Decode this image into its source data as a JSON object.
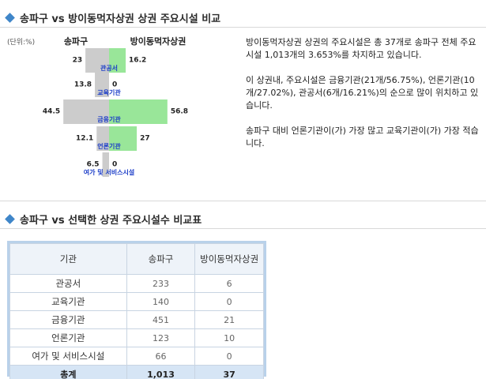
{
  "section1": {
    "title": "송파구 vs 방이동먹자상권 상권 주요시설 비교"
  },
  "section2": {
    "title": "송파구 vs 선택한 상권 주요시설수 비교표"
  },
  "chart_data": {
    "type": "bar",
    "orientation": "horizontal-butterfly",
    "unit_label": "(단위:%)",
    "categories": [
      "관공서",
      "교육기관",
      "금융기관",
      "언론기관",
      "여가 및 서비스시설"
    ],
    "series": [
      {
        "name": "송파구",
        "values": [
          23,
          13.8,
          44.5,
          12.1,
          6.5
        ],
        "color": "#cccccc"
      },
      {
        "name": "방이동먹자상권",
        "values": [
          16.2,
          0,
          56.8,
          27,
          0
        ],
        "color": "#99e699"
      }
    ],
    "value_labels_left": [
      "23",
      "13.8",
      "44.5",
      "12.1",
      "6.5"
    ],
    "value_labels_right": [
      "16.2",
      "0",
      "56.8",
      "27",
      "0"
    ],
    "category_label_color": "#1a3cc8"
  },
  "description": {
    "paragraphs": [
      "방이동먹자상권 상권의 주요시설은 총 37개로 송파구 전체 주요시설 1,013개의 3.653%를 차지하고 있습니다.",
      "이 상권내, 주요시설은 금융기관(21개/56.75%), 언론기관(10개/27.02%), 관공서(6개/16.21%)의 순으로 많이 위치하고 있습니다.",
      "송파구 대비 언론기관이(가) 가장 많고 교육기관이(가) 가장 적습니다."
    ]
  },
  "table": {
    "headers": [
      "기관",
      "송파구",
      "방이동먹자상권"
    ],
    "rows": [
      [
        "관공서",
        "233",
        "6"
      ],
      [
        "교육기관",
        "140",
        "0"
      ],
      [
        "금융기관",
        "451",
        "21"
      ],
      [
        "언론기관",
        "123",
        "10"
      ],
      [
        "여가 및 서비스시설",
        "66",
        "0"
      ]
    ],
    "total": [
      "총계",
      "1,013",
      "37"
    ]
  }
}
